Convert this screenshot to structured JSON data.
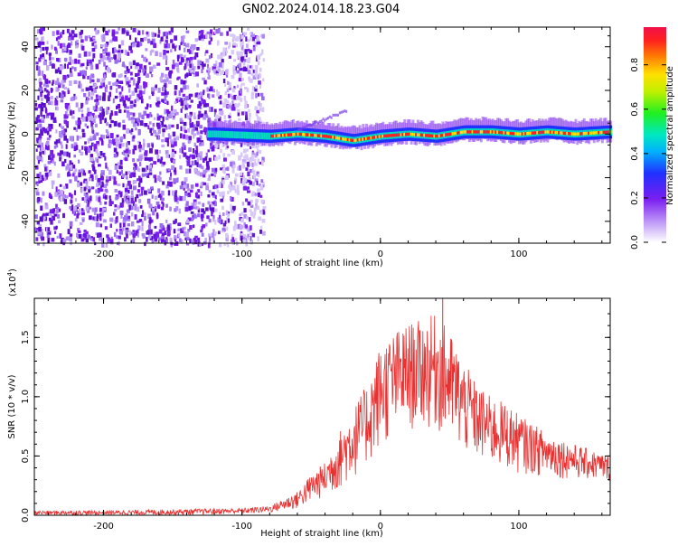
{
  "title": "GN02.2024.014.18.23.G04",
  "colors": {
    "snr_line": "#e83232",
    "scatter_low": "#b89cf5",
    "scatter_mid": "#6a1fe0",
    "band_high": "#ff2020",
    "band_mid": "#00e0a0"
  },
  "colorbar": {
    "label": "Normalized spectral amplitude",
    "ticks": [
      "0.0",
      "0.2",
      "0.4",
      "0.6",
      "0.8"
    ],
    "tick_values": [
      0.0,
      0.2,
      0.4,
      0.6,
      0.8
    ],
    "range": [
      0,
      0.97
    ]
  },
  "chart_data": [
    {
      "type": "heatmap",
      "title": "GN02.2024.014.18.23.G04",
      "xlabel": "Height of straight line (km)",
      "ylabel": "Frequency (Hz)",
      "xlim": [
        -250,
        166
      ],
      "ylim": [
        -50,
        49
      ],
      "x_ticks": [
        -200,
        -100,
        0,
        100
      ],
      "x_tick_labels": [
        "-200",
        "-100",
        "0",
        "100"
      ],
      "y_ticks": [
        -40,
        -20,
        0,
        20,
        40
      ],
      "y_tick_labels": [
        "-40",
        "-20",
        "0",
        "20",
        "40"
      ],
      "regions": [
        {
          "name": "broadband noise",
          "x_range": [
            -250,
            -85
          ],
          "freq_range": [
            -50,
            49
          ],
          "amplitude": 0.15
        },
        {
          "name": "signal band",
          "x_range": [
            -125,
            166
          ],
          "center_freq": 0,
          "amplitude": 0.9
        }
      ],
      "band_center": [
        {
          "x": -120,
          "f": 0
        },
        {
          "x": -80,
          "f": -1
        },
        {
          "x": -60,
          "f": 0
        },
        {
          "x": -40,
          "f": -1
        },
        {
          "x": -30,
          "f": -2
        },
        {
          "x": -20,
          "f": -3
        },
        {
          "x": -10,
          "f": -2
        },
        {
          "x": 0,
          "f": -1
        },
        {
          "x": 20,
          "f": 0
        },
        {
          "x": 40,
          "f": -1
        },
        {
          "x": 60,
          "f": 1
        },
        {
          "x": 80,
          "f": 1
        },
        {
          "x": 100,
          "f": 0
        },
        {
          "x": 120,
          "f": 1
        },
        {
          "x": 140,
          "f": 0
        },
        {
          "x": 166,
          "f": 1
        }
      ]
    },
    {
      "type": "line",
      "xlabel": "Height of straight line (km)",
      "ylabel": "SNR (10 * v/v)",
      "scale_label": "(x10",
      "scale_exponent": "4",
      "scale_suffix": ")",
      "xlim": [
        -250,
        166
      ],
      "ylim": [
        0,
        1.83
      ],
      "x_ticks": [
        -200,
        -100,
        0,
        100
      ],
      "x_tick_labels": [
        "-200",
        "-100",
        "0",
        "100"
      ],
      "y_ticks": [
        0.0,
        0.5,
        1.0,
        1.5
      ],
      "y_tick_labels": [
        "0.0",
        "0.5",
        "1.0",
        "1.5"
      ],
      "series": [
        {
          "x": [
            -250,
            -200,
            -150,
            -100,
            -80,
            -60,
            -50,
            -40,
            -30,
            -20,
            -10,
            0,
            10,
            20,
            30,
            40,
            50,
            60,
            70,
            80,
            90,
            100,
            120,
            140,
            166
          ],
          "envelope_upper": [
            0.04,
            0.04,
            0.05,
            0.06,
            0.08,
            0.2,
            0.35,
            0.45,
            0.7,
            0.9,
            1.1,
            1.45,
            1.55,
            1.62,
            1.65,
            1.7,
            1.55,
            1.3,
            1.1,
            1.0,
            0.95,
            0.85,
            0.7,
            0.6,
            0.5
          ],
          "envelope_lower": [
            0.0,
            0.0,
            0.0,
            0.01,
            0.02,
            0.05,
            0.1,
            0.15,
            0.2,
            0.3,
            0.4,
            0.55,
            0.65,
            0.7,
            0.72,
            0.7,
            0.6,
            0.5,
            0.45,
            0.4,
            0.38,
            0.35,
            0.32,
            0.3,
            0.28
          ],
          "peak": {
            "x": 45,
            "y": 1.83
          }
        }
      ]
    }
  ]
}
